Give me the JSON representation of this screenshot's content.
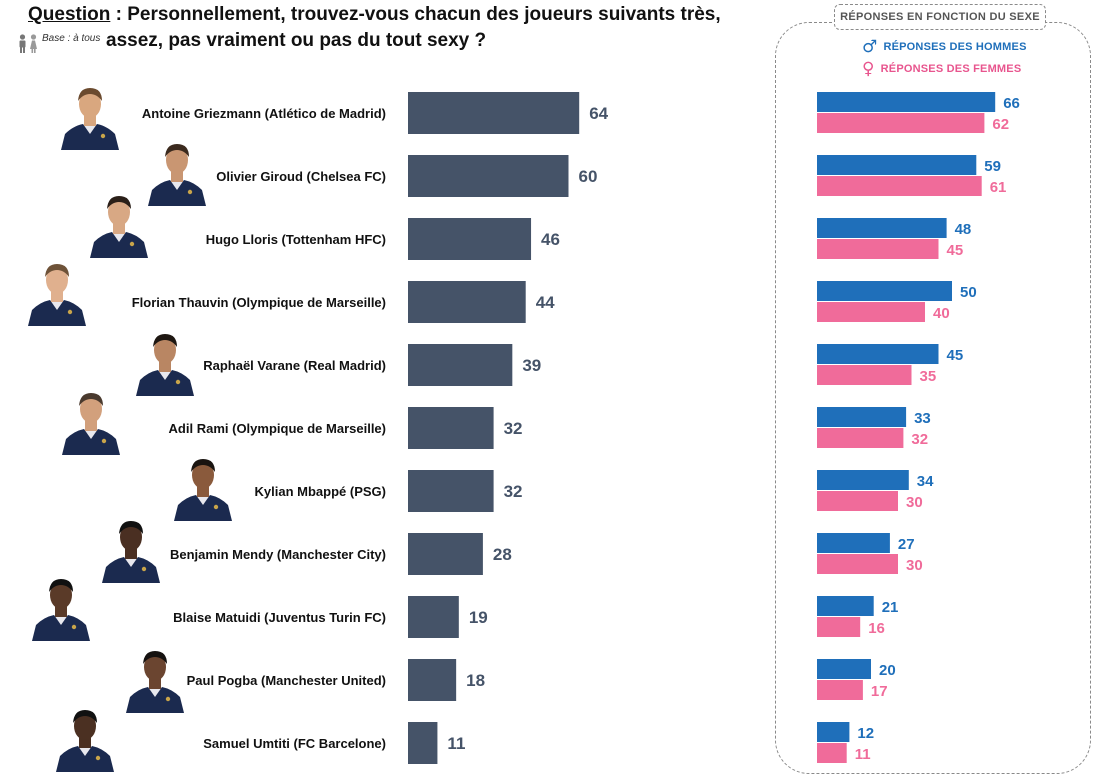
{
  "header": {
    "question_label": "Question",
    "question_line1": " : Personnellement, trouvez-vous chacun des joueurs suivants très,",
    "question_line2": "assez, pas vraiment ou pas du tout sexy ?",
    "base": "Base : à tous"
  },
  "gender_panel": {
    "title": "RÉPONSES EN FONCTION DU SEXE",
    "men_label": "RÉPONSES DES HOMMES",
    "women_label": "RÉPONSES DES FEMMES",
    "men_symbol": "♂",
    "women_symbol": "♀"
  },
  "colors": {
    "total_bar": "#455368",
    "total_label": "#455368",
    "men": "#1f6fba",
    "women": "#f06b9a"
  },
  "chart_data": [
    {
      "type": "bar",
      "orientation": "horizontal",
      "categories": [
        "Antoine Griezmann (Atlético de Madrid)",
        "Olivier Giroud (Chelsea FC)",
        "Hugo Lloris (Tottenham HFC)",
        "Florian Thauvin (Olympique de Marseille)",
        "Raphaël Varane (Real Madrid)",
        "Adil Rami (Olympique de Marseille)",
        "Kylian Mbappé (PSG)",
        "Benjamin Mendy (Manchester City)",
        "Blaise Matuidi (Juventus Turin FC)",
        "Paul Pogba (Manchester United)",
        "Samuel Umtiti (FC Barcelone)"
      ],
      "values": [
        64,
        60,
        46,
        44,
        39,
        32,
        32,
        28,
        19,
        18,
        11
      ],
      "xlim": [
        0,
        100
      ]
    },
    {
      "type": "bar",
      "orientation": "horizontal",
      "categories": [
        "Antoine Griezmann (Atlético de Madrid)",
        "Olivier Giroud (Chelsea FC)",
        "Hugo Lloris (Tottenham HFC)",
        "Florian Thauvin (Olympique de Marseille)",
        "Raphaël Varane (Real Madrid)",
        "Adil Rami (Olympique de Marseille)",
        "Kylian Mbappé (PSG)",
        "Benjamin Mendy (Manchester City)",
        "Blaise Matuidi (Juventus Turin FC)",
        "Paul Pogba (Manchester United)",
        "Samuel Umtiti (FC Barcelone)"
      ],
      "series": [
        {
          "name": "RÉPONSES DES HOMMES",
          "values": [
            66,
            59,
            48,
            50,
            45,
            33,
            34,
            27,
            21,
            20,
            12
          ]
        },
        {
          "name": "RÉPONSES DES FEMMES",
          "values": [
            62,
            61,
            45,
            40,
            35,
            32,
            30,
            30,
            16,
            17,
            11
          ]
        }
      ],
      "xlim": [
        0,
        100
      ],
      "legend": "top"
    }
  ]
}
